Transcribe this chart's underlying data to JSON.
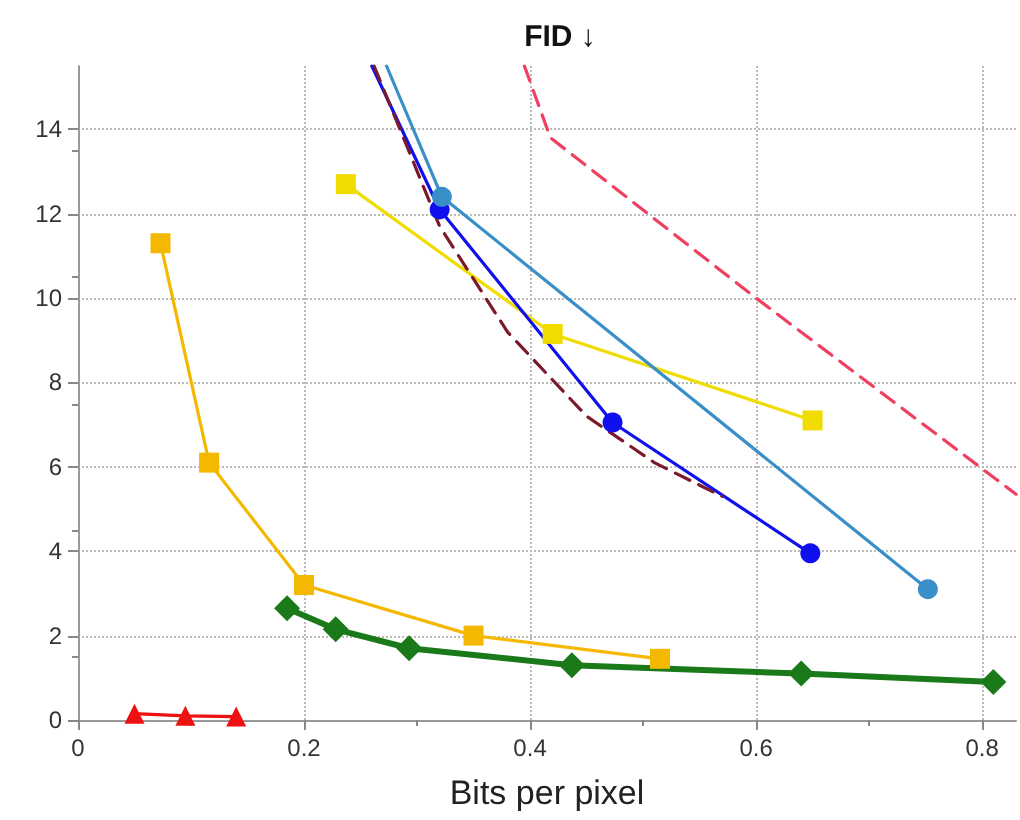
{
  "chart_data": {
    "type": "line",
    "title": "FID ↓",
    "xlabel": "Bits per pixel",
    "xlim": [
      0,
      0.83
    ],
    "xticks": [
      0,
      0.2,
      0.4,
      0.6,
      0.8
    ],
    "ylim": [
      0,
      15.5
    ],
    "yticks": [
      0,
      2,
      4,
      6,
      8,
      10,
      12,
      14
    ],
    "grid": true,
    "series": [
      {
        "color": "#ee1111",
        "marker": "triangle",
        "line_style": "solid",
        "x": [
          0.05,
          0.095,
          0.14
        ],
        "values": [
          0.15,
          0.1,
          0.08
        ]
      },
      {
        "color": "#f5b800",
        "marker": "square",
        "line_style": "solid",
        "x": [
          0.073,
          0.116,
          0.2,
          0.35,
          0.515
        ],
        "values": [
          11.3,
          6.1,
          3.2,
          2.0,
          1.45
        ]
      },
      {
        "color": "#1a7a1a",
        "marker": "diamond",
        "line_style": "solid",
        "x": [
          0.185,
          0.228,
          0.293,
          0.437,
          0.64,
          0.81
        ],
        "values": [
          2.65,
          2.15,
          1.7,
          1.3,
          1.1,
          0.9
        ]
      },
      {
        "color": "#f0dc00",
        "marker": "square",
        "line_style": "solid",
        "x": [
          0.237,
          0.42,
          0.65
        ],
        "values": [
          12.7,
          9.15,
          7.1
        ]
      },
      {
        "color": "#1010ee",
        "marker": "circle",
        "line_style": "solid",
        "x": [
          0.26,
          0.32,
          0.473,
          0.648
        ],
        "values": [
          15.5,
          12.1,
          7.05,
          3.95
        ]
      },
      {
        "color": "#3a8fc8",
        "marker": "circle",
        "line_style": "solid",
        "x": [
          0.273,
          0.322,
          0.752
        ],
        "values": [
          15.5,
          12.4,
          3.1
        ]
      },
      {
        "color": "#7a1a2a",
        "marker": "none",
        "line_style": "dashed",
        "x": [
          0.262,
          0.32,
          0.38,
          0.45,
          0.51,
          0.57
        ],
        "values": [
          15.5,
          11.7,
          9.2,
          7.2,
          6.1,
          5.3
        ]
      },
      {
        "color": "#f04060",
        "marker": "none",
        "line_style": "dashed",
        "x": [
          0.395,
          0.418,
          0.6,
          0.83
        ],
        "values": [
          15.5,
          13.8,
          10.0,
          5.35
        ]
      }
    ]
  }
}
